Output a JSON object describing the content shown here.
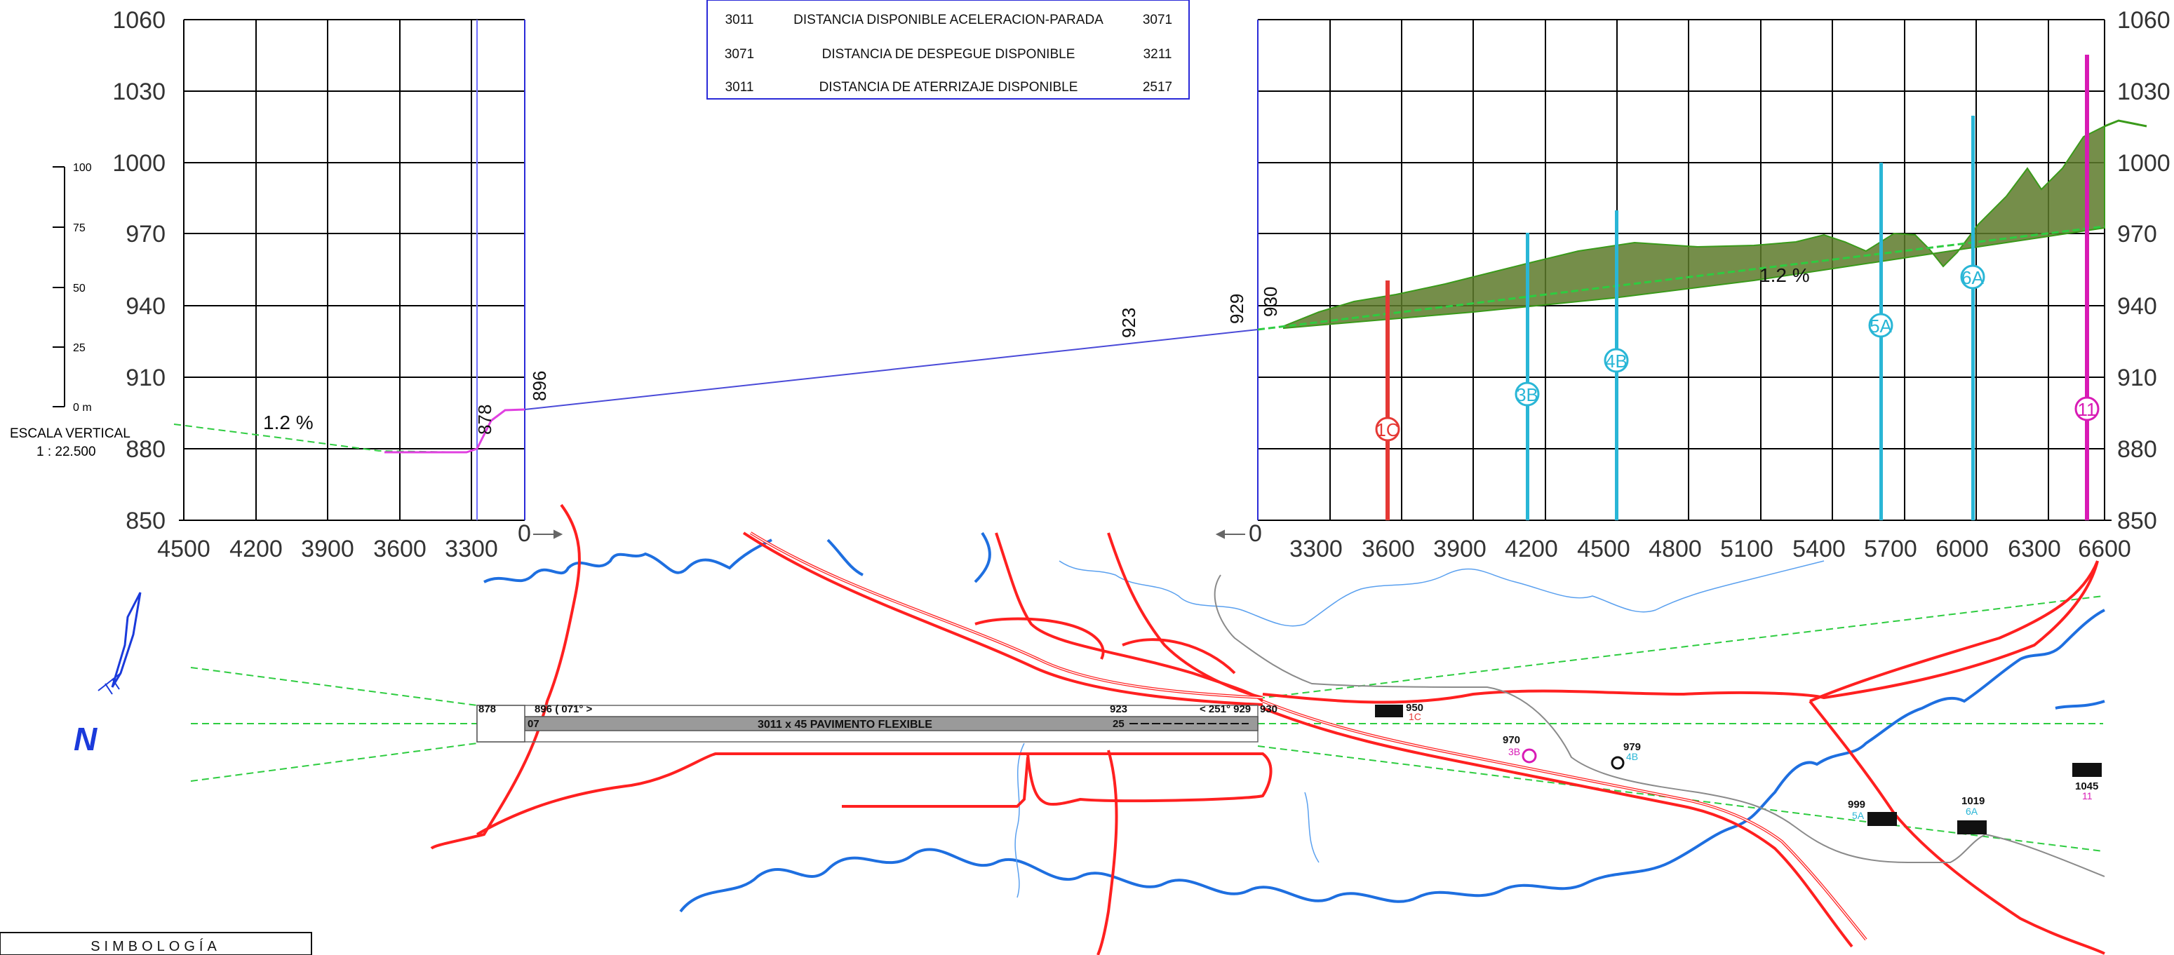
{
  "y_axis": {
    "ticks": [
      "1060",
      "1030",
      "1000",
      "970",
      "940",
      "910",
      "880",
      "850"
    ]
  },
  "x_axis_left": {
    "ticks": [
      "4500",
      "4200",
      "3900",
      "3600",
      "3300"
    ]
  },
  "x_axis_right": {
    "ticks": [
      "3300",
      "3600",
      "3900",
      "4200",
      "4500",
      "4800",
      "5100",
      "5400",
      "5700",
      "6000",
      "6300",
      "6600"
    ]
  },
  "origin_labels": {
    "left": "0",
    "right": "0"
  },
  "distances_table": {
    "rows": [
      {
        "left": "3011",
        "label": "DISTANCIA DISPONIBLE ACELERACION-PARADA",
        "right": "3071"
      },
      {
        "left": "3071",
        "label": "DISTANCIA DE DESPEGUE DISPONIBLE",
        "right": "3211"
      },
      {
        "left": "3011",
        "label": "DISTANCIA DE ATERRIZAJE DISPONIBLE",
        "right": "2517"
      }
    ]
  },
  "vertical_scale": {
    "ticks": [
      "100",
      "75",
      "50",
      "25",
      "0 m"
    ],
    "label": "ESCALA VERTICAL",
    "ratio": "1 : 22.500"
  },
  "profile_labels": {
    "slope_left": "1.2 %",
    "slope_right": "1.2 %",
    "elev_878": "878",
    "elev_896": "896",
    "elev_923": "923",
    "elev_929": "929",
    "elev_930": "930"
  },
  "obstacles": [
    {
      "id": "1C",
      "color": "#e53935"
    },
    {
      "id": "3B",
      "color": "#29b6d6"
    },
    {
      "id": "4B",
      "color": "#29b6d6"
    },
    {
      "id": "5A",
      "color": "#29b6d6"
    },
    {
      "id": "6A",
      "color": "#29b6d6"
    },
    {
      "id": "11",
      "color": "#d81bb5"
    }
  ],
  "map": {
    "north": "N",
    "runway_label": "3011  x  45    PAVIMENTO  FLEXIBLE",
    "thr_left_elev": "878",
    "thr_left_info": "896  ( 071° >",
    "thr_right_info": "< 251°  929",
    "mid_elev": "923",
    "thr_right_elev": "930",
    "thr_left_num": "07",
    "thr_right_num": "25",
    "obs_950": "950",
    "obs_950_id": "1C",
    "obs_970": "970",
    "obs_970_id": "3B",
    "obs_979": "979",
    "obs_979_id": "4B",
    "obs_999": "999",
    "obs_999_id": "5A",
    "obs_1019": "1019",
    "obs_1019_id": "6A",
    "obs_1045": "1045",
    "obs_1045_id": "11"
  },
  "legend": {
    "title": "SIMBOLOGÍA"
  },
  "colors": {
    "grid": "#000000",
    "profile_line": "#4a4ad8",
    "terrain_fill": "#5d7a2a",
    "slope_line": "#2ecc40",
    "road": "#ff2020",
    "river": "#1e6fe0",
    "runway": "#9a9a9a"
  }
}
